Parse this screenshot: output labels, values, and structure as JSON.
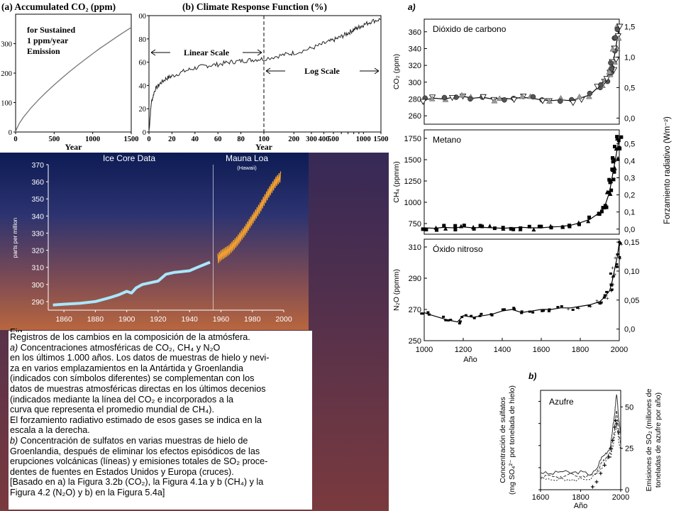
{
  "caption": {
    "cut_line": "Fig",
    "title": "Registros de los cambios en la composición de la atmósfera.",
    "part_a_prefix": "a)",
    "part_a_lines": [
      "Concentraciones atmosféricas de CO₂, CH₄ y N₂O",
      "en los últimos 1.000 años. Los datos de muestras de hielo y nevi-",
      "za en varios emplazamientos en la Antártida y Groenlandia",
      "(indicados con símbolos diferentes) se complementan con los",
      "datos de muestras atmosféricas directas en los últimos decenios",
      "(indicados mediante la línea del CO₂ e incorporados a la",
      "curva que representa el promedio mundial de CH₄).",
      "El forzamiento radiativo estimado de esos gases se indica en la",
      "escala a la derecha."
    ],
    "part_b_prefix": "b)",
    "part_b_lines": [
      "Concentración de sulfatos en varias muestras de hielo de",
      "Groenlandia, después de eliminar los efectos episódicos de las",
      "erupciones volcánicas (líneas) y emisiones totales de SO₂ proce-",
      "dentes de fuentes en Estados Unidos y Europa (cruces).",
      "[Basado en  a) la Figura 3.2b (CO₂), la Figura 4.1a y b (CH₄) y la",
      "Figura 4.2 (N₂O) y  b) en la Figura 5.4a]"
    ]
  },
  "chart_data": [
    {
      "id": "accumulated-co2",
      "type": "line",
      "title": "(a) Accumulated CO₂ (ppm)",
      "xlabel": "Year",
      "annotation": [
        "for Sustained",
        "1 ppm/year",
        "Emission"
      ],
      "xlim": [
        0,
        1500
      ],
      "ylim": [
        0,
        400
      ],
      "x_ticks": [
        0,
        500,
        1000,
        1500
      ],
      "y_ticks": [
        0,
        100,
        200,
        300
      ],
      "series": [
        {
          "x": [
            0,
            10,
            50,
            100,
            200,
            300,
            400,
            500,
            600,
            700,
            800,
            900,
            1000,
            1100,
            1200,
            1300,
            1400,
            1500
          ],
          "y": [
            0,
            9,
            30,
            50,
            82,
            110,
            136,
            160,
            183,
            205,
            226,
            246,
            266,
            285,
            303,
            321,
            338,
            355
          ]
        }
      ]
    },
    {
      "id": "climate-response",
      "type": "line",
      "title": "(b) Climate Response Function (%)",
      "xlabel": "Year",
      "annotations": [
        "Linear Scale",
        "Log Scale"
      ],
      "ylim": [
        0,
        100
      ],
      "y_ticks": [
        0,
        20,
        40,
        60,
        80,
        100
      ],
      "x_ticks_linear": [
        0,
        20,
        40,
        60,
        80,
        100
      ],
      "x_ticks_log": [
        200,
        300,
        400,
        500,
        600,
        700,
        800,
        900,
        1000,
        1500
      ],
      "series": [
        {
          "x": [
            0,
            2,
            5,
            10,
            15,
            20,
            30,
            40,
            50,
            60,
            70,
            80,
            90,
            100,
            150,
            200,
            300,
            400,
            500,
            600,
            700,
            800,
            900,
            1000,
            1200,
            1500
          ],
          "y": [
            0,
            25,
            36,
            42,
            46,
            48,
            52,
            55,
            57,
            58,
            60,
            61,
            62,
            63,
            66,
            68,
            72,
            76,
            79,
            82,
            85,
            88,
            90,
            92,
            95,
            97
          ]
        }
      ]
    },
    {
      "id": "ice-core-mauna-loa",
      "type": "line",
      "title_left": "Ice Core Data",
      "title_right": "Mauna Loa",
      "subtitle_right": "(Hawaii)",
      "ylabel": "parts per million",
      "xlim": [
        1850,
        2000
      ],
      "ylim": [
        285,
        370
      ],
      "x_ticks": [
        1860,
        1880,
        1900,
        1920,
        1940,
        1960,
        1980,
        2000
      ],
      "y_ticks": [
        290,
        300,
        310,
        320,
        330,
        340,
        350,
        360,
        370
      ],
      "series": [
        {
          "name": "Ice Core Data",
          "color": "#a8e8ff",
          "x": [
            1853,
            1860,
            1870,
            1880,
            1890,
            1895,
            1900,
            1903,
            1906,
            1910,
            1920,
            1925,
            1930,
            1940,
            1945,
            1953
          ],
          "y": [
            288,
            288.5,
            289,
            290,
            292.5,
            294,
            296,
            295,
            298,
            300,
            302,
            306,
            307,
            308,
            310,
            313
          ]
        },
        {
          "name": "Mauna Loa",
          "color": "#f0a030",
          "x": [
            1958,
            1960,
            1965,
            1970,
            1975,
            1980,
            1985,
            1990,
            1995,
            1998
          ],
          "y": [
            315,
            317,
            320,
            325,
            331,
            338,
            345,
            353,
            360,
            363
          ]
        }
      ]
    },
    {
      "id": "co2-1000yr",
      "type": "scatter",
      "panel_label": "a)",
      "title": "Dióxido de carbono",
      "ylabel": "CO₂ (ppm)",
      "xlim": [
        1000,
        2000
      ],
      "ylim": [
        250,
        375
      ],
      "y_ticks": [
        260,
        280,
        300,
        320,
        340,
        360
      ],
      "y2_ticks": [
        "0,0",
        "0,5",
        "1,0",
        "1,5"
      ],
      "y2_values": [
        0,
        0.5,
        1.0,
        1.5
      ],
      "y2lim": [
        -0.1,
        1.62
      ],
      "x": [
        1000,
        1050,
        1100,
        1150,
        1200,
        1250,
        1300,
        1350,
        1400,
        1450,
        1500,
        1550,
        1600,
        1650,
        1700,
        1750,
        1800,
        1850,
        1900,
        1925,
        1950,
        1960,
        1970,
        1980,
        1990,
        2000
      ],
      "y": [
        279,
        281,
        280,
        282,
        283,
        281,
        282,
        280,
        281,
        280,
        282,
        281,
        279,
        278,
        279,
        278,
        281,
        285,
        296,
        303,
        311,
        317,
        325,
        338,
        353,
        365
      ]
    },
    {
      "id": "ch4-1000yr",
      "type": "scatter",
      "title": "Metano",
      "ylabel": "CH₄ (ppmm)",
      "xlim": [
        1000,
        2000
      ],
      "ylim": [
        625,
        1850
      ],
      "y_ticks": [
        750,
        1000,
        1250,
        1500,
        1750
      ],
      "y2_ticks": [
        "0,0",
        "0,1",
        "0,2",
        "0,3",
        "0,4",
        "0,5"
      ],
      "y2_values": [
        0,
        0.1,
        0.2,
        0.3,
        0.4,
        0.5
      ],
      "y2lim": [
        -0.03,
        0.58
      ],
      "y2label": "Forzamiento radiativo (Wm⁻²)",
      "x": [
        1000,
        1050,
        1100,
        1150,
        1200,
        1250,
        1300,
        1350,
        1400,
        1450,
        1500,
        1550,
        1600,
        1650,
        1700,
        1750,
        1800,
        1850,
        1900,
        1925,
        1950,
        1960,
        1970,
        1980,
        1990,
        2000
      ],
      "y": [
        700,
        695,
        705,
        700,
        710,
        700,
        705,
        700,
        695,
        700,
        705,
        700,
        700,
        710,
        715,
        730,
        760,
        800,
        880,
        950,
        1120,
        1250,
        1380,
        1500,
        1640,
        1750
      ]
    },
    {
      "id": "n2o-1000yr",
      "type": "scatter",
      "title": "Óxido nitroso",
      "ylabel": "N₂O (ppmm)",
      "xlabel": "Año",
      "xlim": [
        1000,
        2000
      ],
      "ylim": [
        250,
        315
      ],
      "x_ticks": [
        1000,
        1200,
        1400,
        1600,
        1800,
        2000
      ],
      "y_ticks": [
        250,
        270,
        290,
        310
      ],
      "y2_ticks": [
        "0,0",
        "0,05",
        "0,10",
        "0,15"
      ],
      "y2_values": [
        0,
        0.05,
        0.1,
        0.15
      ],
      "y2lim": [
        -0.02,
        0.155
      ],
      "x": [
        1000,
        1020,
        1100,
        1130,
        1170,
        1200,
        1250,
        1300,
        1350,
        1400,
        1450,
        1500,
        1550,
        1600,
        1650,
        1700,
        1750,
        1800,
        1850,
        1900,
        1925,
        1950,
        1960,
        1970,
        1980,
        1990,
        2000
      ],
      "y": [
        268,
        267,
        264,
        263,
        262,
        266,
        265,
        266,
        267,
        269,
        270,
        268,
        269,
        270,
        270,
        271,
        271,
        272,
        273,
        275,
        278,
        282,
        286,
        292,
        298,
        304,
        313
      ]
    },
    {
      "id": "sulphate",
      "type": "line",
      "panel_label": "b)",
      "title": "Azufre",
      "xlabel": "Año",
      "ylabel_lines": [
        "Concentración de sulfatos",
        "(mg SO₄²⁻ por tonelada de hielo)"
      ],
      "y2label_lines": [
        "Emisiones de SO₂ (millones de",
        "toneladas de azufre por año)"
      ],
      "xlim": [
        1600,
        2000
      ],
      "ylim": [
        0,
        225
      ],
      "x_ticks": [
        1600,
        1800,
        2000
      ],
      "y_ticks": [
        0,
        50,
        100,
        150,
        200
      ],
      "y2_ticks": [
        0,
        25,
        50
      ],
      "y2lim": [
        0,
        60
      ],
      "series": [
        {
          "x": [
            1600,
            1650,
            1700,
            1750,
            1800,
            1850,
            1880,
            1900,
            1920,
            1940,
            1950,
            1960,
            1970,
            1975,
            1980,
            1990,
            2000
          ],
          "y": [
            40,
            35,
            42,
            38,
            40,
            35,
            45,
            70,
            80,
            90,
            100,
            140,
            170,
            200,
            215,
            160,
            120
          ]
        },
        {
          "x": [
            1600,
            1650,
            1700,
            1750,
            1800,
            1850,
            1880,
            1900,
            1920,
            1940,
            1950,
            1960,
            1970,
            1975,
            1980,
            1990,
            2000
          ],
          "y": [
            30,
            32,
            28,
            34,
            30,
            32,
            40,
            55,
            70,
            80,
            85,
            110,
            140,
            165,
            180,
            130,
            100
          ]
        },
        {
          "x": [
            1600,
            1650,
            1700,
            1750,
            1800,
            1850,
            1880,
            1900,
            1920,
            1940,
            1950,
            1960,
            1970,
            1980,
            1990,
            2000
          ],
          "y": [
            25,
            22,
            26,
            20,
            24,
            25,
            35,
            45,
            60,
            70,
            75,
            95,
            120,
            150,
            110,
            90
          ]
        },
        {
          "name": "SO₂ emisiones",
          "x": [
            1860,
            1880,
            1900,
            1920,
            1940,
            1950,
            1960,
            1970,
            1975,
            1980,
            1990
          ],
          "y2": [
            2,
            5,
            10,
            15,
            20,
            25,
            30,
            38,
            42,
            40,
            35
          ]
        }
      ]
    }
  ]
}
